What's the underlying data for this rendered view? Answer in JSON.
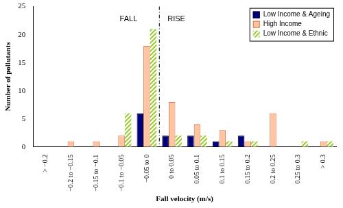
{
  "chart_data": {
    "type": "bar",
    "x_label": "Fall velocity (m/s)",
    "y_label": "Number of pollutants",
    "categories": [
      "> −0.2",
      "−0.2 to −0.15",
      "−0.15 to −0.1",
      "−0.1 to −0.05",
      "−0.05 to 0",
      "0 to 0.05",
      "0.05 to 0.1",
      "0.1 to 0.15",
      "0.15 to 0.2",
      "0.2 to 0.25",
      "0.25 to 0.3",
      "> 0.3"
    ],
    "series": [
      {
        "name": "Low Income & Ageing",
        "color": "#00007a",
        "marker": "solid",
        "values": [
          0,
          0,
          0,
          0,
          6,
          2,
          2,
          1,
          2,
          0,
          0,
          0
        ]
      },
      {
        "name": "High Income",
        "color": "#ffc4a2",
        "marker": "solid",
        "values": [
          0,
          1,
          1,
          2,
          18,
          8,
          4,
          3,
          1,
          6,
          0,
          1
        ]
      },
      {
        "name": "Low Income & Ethnic",
        "color": "#9acd32",
        "marker": "hatch",
        "values": [
          0,
          0,
          0,
          6,
          21,
          2,
          2,
          1,
          1,
          0,
          1,
          1
        ]
      }
    ],
    "annotations": [
      {
        "text": "FALL",
        "categories": [
          "> −0.2",
          "−0.05 to 0"
        ]
      },
      {
        "text": "RISE",
        "categories": [
          "0 to 0.05",
          "> 0.3"
        ]
      }
    ],
    "ylim": [
      0,
      25
    ],
    "yticks": [
      0,
      5,
      10,
      15,
      20,
      25
    ],
    "grid": false,
    "legend": "top-right"
  }
}
